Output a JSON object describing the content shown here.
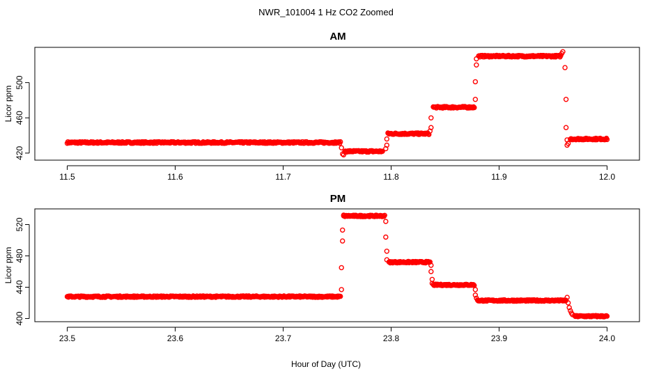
{
  "figure": {
    "title": "NWR_101004  1 Hz CO2 Zoomed",
    "xlabel": "Hour of Day (UTC)"
  },
  "chart_data": [
    {
      "type": "scatter",
      "title": "AM",
      "ylabel": "Licor ppm",
      "xlabel": "Hour of Day (UTC)",
      "xlim": [
        11.47,
        12.03
      ],
      "ylim": [
        412,
        540
      ],
      "x_ticks": [
        11.5,
        11.6,
        11.7,
        11.8,
        11.9,
        12.0
      ],
      "x_tick_labels": [
        "11.5",
        "11.6",
        "11.7",
        "11.8",
        "11.9",
        "12.0"
      ],
      "y_ticks": [
        420,
        460,
        500
      ],
      "y_tick_labels": [
        "420",
        "460",
        "500"
      ],
      "grid": false,
      "marker_color": "#ff0000",
      "marker": "open-circle",
      "segments": [
        {
          "x": [
            11.5,
            11.753
          ],
          "y": 432
        },
        {
          "x": [
            11.757,
            11.792
          ],
          "y": 422
        },
        {
          "x": [
            11.797,
            11.835
          ],
          "y": 442
        },
        {
          "x": [
            11.839,
            11.877
          ],
          "y": 472
        },
        {
          "x": [
            11.881,
            11.957
          ],
          "y": 530
        },
        {
          "x": [
            11.966,
            12.0
          ],
          "y": 436
        }
      ],
      "points": [
        {
          "x": 11.754,
          "y": 426
        },
        {
          "x": 11.755,
          "y": 419
        },
        {
          "x": 11.756,
          "y": 418
        },
        {
          "x": 11.795,
          "y": 425
        },
        {
          "x": 11.796,
          "y": 429
        },
        {
          "x": 11.796,
          "y": 436
        },
        {
          "x": 11.836,
          "y": 445
        },
        {
          "x": 11.837,
          "y": 449
        },
        {
          "x": 11.837,
          "y": 460
        },
        {
          "x": 11.878,
          "y": 481
        },
        {
          "x": 11.878,
          "y": 501
        },
        {
          "x": 11.879,
          "y": 520
        },
        {
          "x": 11.879,
          "y": 527
        },
        {
          "x": 11.958,
          "y": 533
        },
        {
          "x": 11.959,
          "y": 535
        },
        {
          "x": 11.961,
          "y": 517
        },
        {
          "x": 11.962,
          "y": 481
        },
        {
          "x": 11.962,
          "y": 449
        },
        {
          "x": 11.963,
          "y": 435
        },
        {
          "x": 11.963,
          "y": 429
        },
        {
          "x": 11.964,
          "y": 431
        }
      ]
    },
    {
      "type": "scatter",
      "title": "PM",
      "ylabel": "Licor ppm",
      "xlabel": "Hour of Day (UTC)",
      "xlim": [
        23.47,
        24.03
      ],
      "ylim": [
        396,
        540
      ],
      "x_ticks": [
        23.5,
        23.6,
        23.7,
        23.8,
        23.9,
        24.0
      ],
      "x_tick_labels": [
        "23.5",
        "23.6",
        "23.7",
        "23.8",
        "23.9",
        "24.0"
      ],
      "y_ticks": [
        400,
        440,
        480,
        520
      ],
      "y_tick_labels": [
        "400",
        "440",
        "480",
        "520"
      ],
      "grid": false,
      "marker_color": "#ff0000",
      "marker": "open-circle",
      "segments": [
        {
          "x": [
            23.5,
            23.753
          ],
          "y": 428
        },
        {
          "x": [
            23.756,
            23.794
          ],
          "y": 531
        },
        {
          "x": [
            23.798,
            23.836
          ],
          "y": 472
        },
        {
          "x": [
            23.839,
            23.877
          ],
          "y": 443
        },
        {
          "x": [
            23.88,
            23.962
          ],
          "y": 423
        },
        {
          "x": [
            23.97,
            24.0
          ],
          "y": 403
        }
      ],
      "points": [
        {
          "x": 23.754,
          "y": 437
        },
        {
          "x": 23.754,
          "y": 465
        },
        {
          "x": 23.755,
          "y": 499
        },
        {
          "x": 23.755,
          "y": 513
        },
        {
          "x": 23.756,
          "y": 532
        },
        {
          "x": 23.795,
          "y": 524
        },
        {
          "x": 23.795,
          "y": 504
        },
        {
          "x": 23.796,
          "y": 486
        },
        {
          "x": 23.796,
          "y": 475
        },
        {
          "x": 23.837,
          "y": 468
        },
        {
          "x": 23.837,
          "y": 460
        },
        {
          "x": 23.838,
          "y": 450
        },
        {
          "x": 23.838,
          "y": 445
        },
        {
          "x": 23.878,
          "y": 437
        },
        {
          "x": 23.878,
          "y": 430
        },
        {
          "x": 23.879,
          "y": 426
        },
        {
          "x": 23.963,
          "y": 427
        },
        {
          "x": 23.964,
          "y": 420
        },
        {
          "x": 23.965,
          "y": 414
        },
        {
          "x": 23.966,
          "y": 410
        },
        {
          "x": 23.967,
          "y": 407
        },
        {
          "x": 23.968,
          "y": 405
        }
      ]
    }
  ]
}
